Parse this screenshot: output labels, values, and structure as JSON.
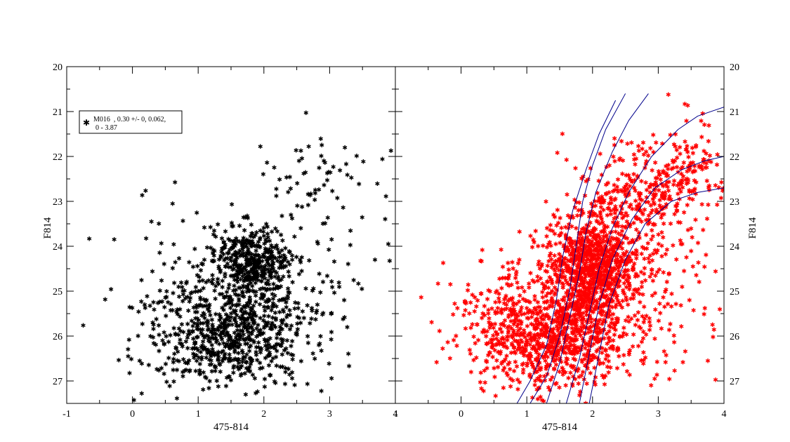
{
  "chart_data": [
    {
      "type": "scatter",
      "title": "",
      "xlabel": "475-814",
      "ylabel": "F814",
      "xlim": [
        -1,
        4
      ],
      "ylim": [
        27.5,
        20
      ],
      "y_inverted": true,
      "xticks": [
        "-1",
        "0",
        "1",
        "2",
        "3",
        "4"
      ],
      "yticks": [
        "20",
        "21",
        "22",
        "23",
        "24",
        "25",
        "26",
        "27"
      ],
      "legend": {
        "placement": "top-left",
        "line1": "M016  , 0.30 +/- 0, 0.062,",
        "line2": "0 - 3.87"
      },
      "grid": false,
      "series": [
        {
          "marker": "star",
          "color": "#000000",
          "distribution": [
            {
              "n": 380,
              "cx": 1.8,
              "cy": 24.35,
              "sx": 0.28,
              "sy": 0.38
            },
            {
              "n": 600,
              "cx": 1.55,
              "cy": 25.95,
              "sx": 0.55,
              "sy": 0.55
            },
            {
              "n": 170,
              "cx": 0.9,
              "cy": 25.4,
              "sx": 0.55,
              "sy": 0.9
            },
            {
              "n": 150,
              "cx": 2.4,
              "cy": 24.6,
              "sx": 0.55,
              "sy": 0.9
            },
            {
              "n": 55,
              "cx": 2.85,
              "cy": 22.3,
              "sx": 0.6,
              "sy": 0.6
            }
          ]
        }
      ]
    },
    {
      "type": "scatter",
      "title": "",
      "xlabel": "475-814",
      "ylabel": "F814",
      "xlim": [
        -1,
        4
      ],
      "ylim": [
        27.5,
        20
      ],
      "y_inverted": true,
      "xticks": [
        "1",
        "0",
        "1",
        "2",
        "3",
        "4"
      ],
      "yticks": [
        "20",
        "21",
        "22",
        "23",
        "24",
        "25",
        "26",
        "27"
      ],
      "grid": false,
      "series": [
        {
          "marker": "star",
          "color": "#ff0000",
          "distribution": [
            {
              "n": 900,
              "cx": 1.95,
              "cy": 24.5,
              "sx": 0.32,
              "sy": 0.55
            },
            {
              "n": 800,
              "cx": 1.45,
              "cy": 26.0,
              "sx": 0.55,
              "sy": 0.55
            },
            {
              "n": 260,
              "cx": 2.55,
              "cy": 23.1,
              "sx": 0.45,
              "sy": 0.6
            },
            {
              "n": 180,
              "cx": 3.3,
              "cy": 22.3,
              "sx": 0.35,
              "sy": 0.6
            },
            {
              "n": 200,
              "cx": 0.8,
              "cy": 25.6,
              "sx": 0.55,
              "sy": 0.7
            },
            {
              "n": 150,
              "cx": 2.9,
              "cy": 25.3,
              "sx": 0.55,
              "sy": 0.9
            }
          ]
        },
        {
          "type": "line",
          "color": "#00008b",
          "curves": [
            {
              "x": [
                0.85,
                1.05,
                1.3,
                1.45,
                1.55,
                1.7,
                1.9,
                2.1,
                2.35
              ],
              "y": [
                27.5,
                27.0,
                26.2,
                25.2,
                24.2,
                23.2,
                22.3,
                21.5,
                20.75
              ]
            },
            {
              "x": [
                1.05,
                1.3,
                1.5,
                1.65,
                1.75,
                1.85,
                2.0,
                2.2,
                2.5
              ],
              "y": [
                27.5,
                26.9,
                26.0,
                25.0,
                24.0,
                23.0,
                22.2,
                21.4,
                20.6
              ]
            },
            {
              "x": [
                1.3,
                1.5,
                1.65,
                1.8,
                1.9,
                2.05,
                2.3,
                2.55,
                2.85
              ],
              "y": [
                27.5,
                26.6,
                25.6,
                24.6,
                23.7,
                22.8,
                21.9,
                21.2,
                20.6
              ]
            },
            {
              "x": [
                1.6,
                1.8,
                1.95,
                2.1,
                2.3,
                2.55,
                2.9,
                3.3,
                3.6,
                4.0
              ],
              "y": [
                27.5,
                26.5,
                25.5,
                24.5,
                23.6,
                22.8,
                22.0,
                21.4,
                21.1,
                20.9
              ]
            },
            {
              "x": [
                1.8,
                1.95,
                2.1,
                2.3,
                2.6,
                2.95,
                3.35,
                3.7,
                4.0
              ],
              "y": [
                27.5,
                26.4,
                25.3,
                24.3,
                23.4,
                22.7,
                22.3,
                22.1,
                22.0
              ]
            },
            {
              "x": [
                1.95,
                2.1,
                2.25,
                2.5,
                2.8,
                3.2,
                3.6,
                4.0
              ],
              "y": [
                27.5,
                26.4,
                25.3,
                24.3,
                23.5,
                23.0,
                22.8,
                22.7
              ]
            }
          ]
        }
      ]
    }
  ]
}
